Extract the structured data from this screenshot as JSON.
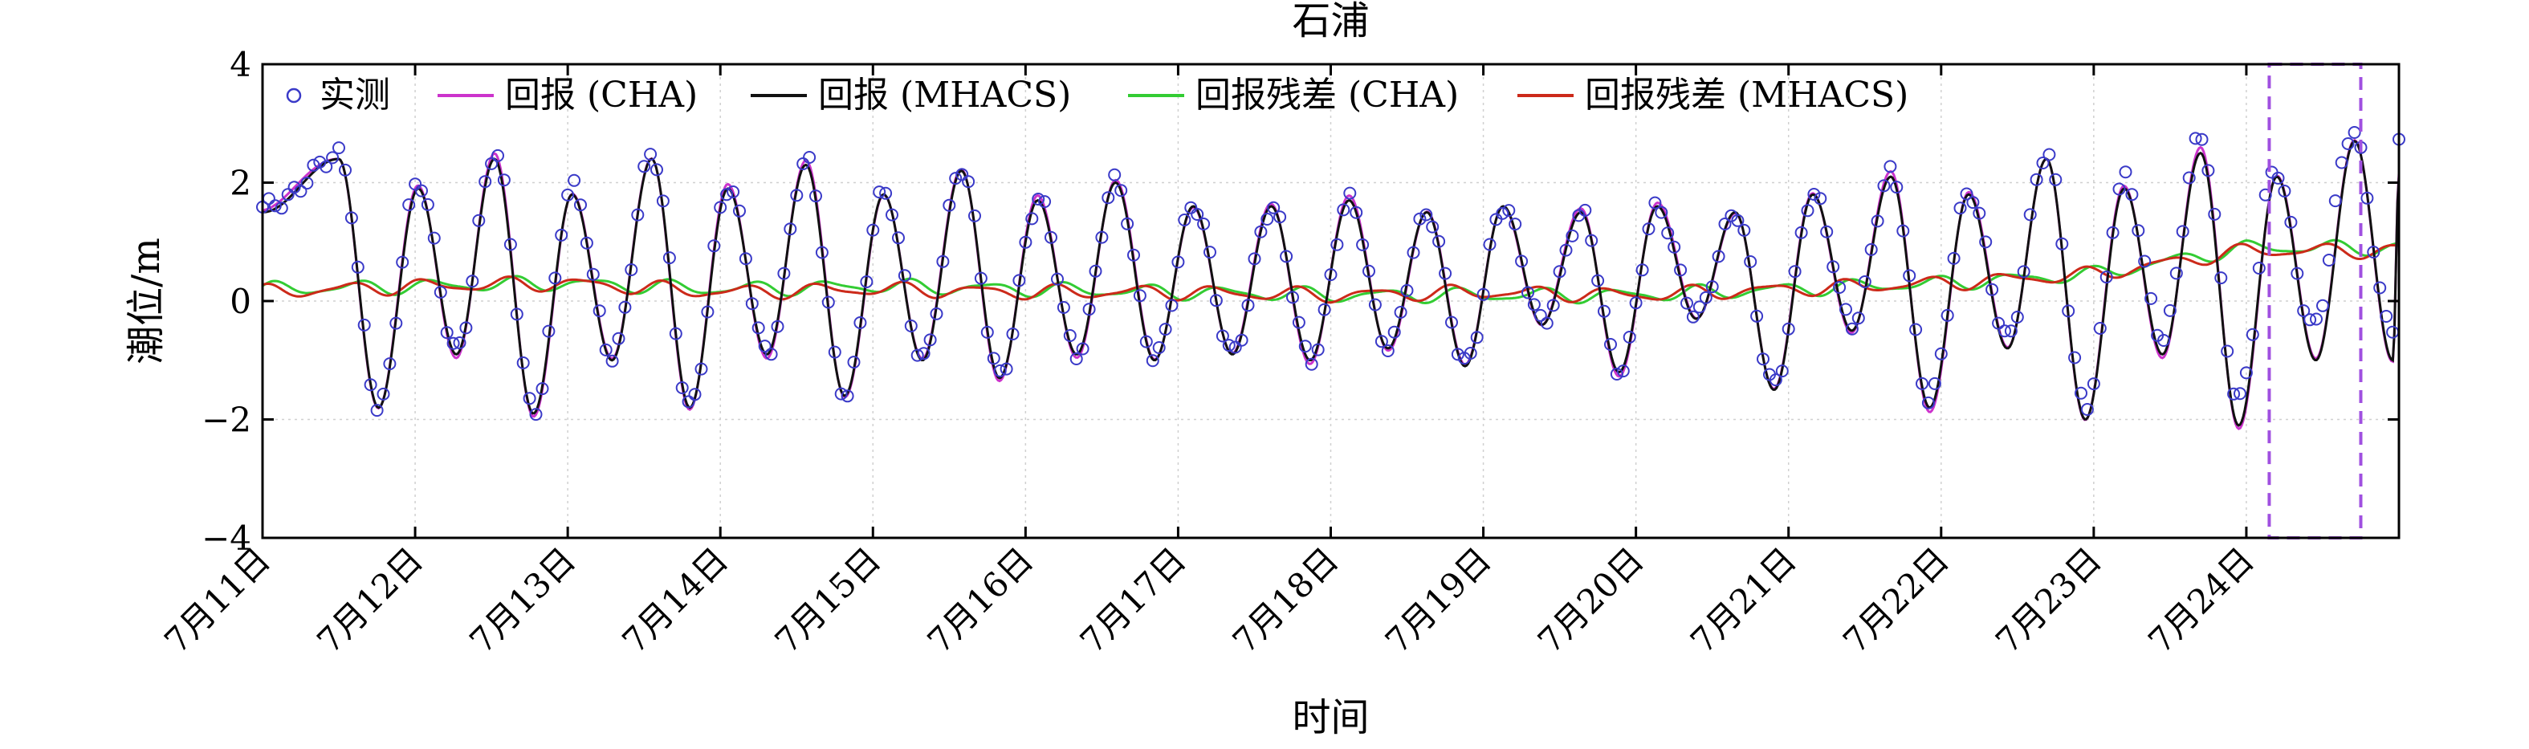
{
  "chart_data": {
    "type": "line",
    "title": "石浦",
    "xlabel": "时间",
    "ylabel": "潮位/m",
    "ylim": [
      -4,
      4
    ],
    "yticks": [
      -4,
      -2,
      0,
      2,
      4
    ],
    "xlim": [
      "7月11日",
      "7月25日 00:00"
    ],
    "xtick_labels": [
      "7月11日",
      "7月12日",
      "7月13日",
      "7月14日",
      "7月15日",
      "7月16日",
      "7月17日",
      "7月18日",
      "7月19日",
      "7月20日",
      "7月21日",
      "7月22日",
      "7月23日",
      "7月24日"
    ],
    "grid": true,
    "legend_position": "top",
    "legend": [
      "实测",
      "回报 (CHA)",
      "回报 (MHACS)",
      "回报残差 (CHA)",
      "回报残差 (MHACS)"
    ],
    "colors": {
      "observed": "#3a3ac8",
      "cha": "#cc33cc",
      "mhacs": "#111111",
      "residual_cha": "#33cc33",
      "residual_mhacs": "#cc2a1a",
      "highlight_box": "#a050e0"
    },
    "highlight_region": {
      "x_start_day": 13.15,
      "x_end_day": 13.75,
      "y_range": [
        -4,
        4
      ]
    },
    "series_summary": {
      "peak_times_day": [
        0.5,
        1.02,
        1.52,
        2.03,
        2.55,
        3.05,
        3.56,
        4.07,
        4.58,
        5.08,
        5.59,
        6.1,
        6.61,
        7.12,
        7.63,
        8.13,
        8.64,
        9.14,
        9.65,
        10.16,
        10.67,
        11.18,
        11.69,
        12.2,
        12.7,
        13.2,
        13.71
      ],
      "peak_values_m": [
        2.4,
        1.9,
        2.4,
        1.8,
        2.4,
        1.9,
        2.3,
        1.8,
        2.2,
        1.7,
        2.0,
        1.6,
        1.6,
        1.7,
        1.5,
        1.6,
        1.5,
        1.6,
        1.5,
        1.8,
        2.1,
        1.8,
        2.4,
        1.9,
        2.5,
        2.1,
        2.7
      ],
      "trough_values_m": [
        -1.8,
        -0.9,
        -1.9,
        -1.0,
        -1.8,
        -0.9,
        -1.6,
        -1.0,
        -1.3,
        -0.9,
        -1.0,
        -0.9,
        -1.0,
        -0.8,
        -1.1,
        -0.4,
        -1.2,
        -0.3,
        -1.5,
        -0.5,
        -1.8,
        -0.8,
        -2.0,
        -0.9,
        -2.1,
        -1.0,
        -1.0
      ],
      "residual_cha_level_m": [
        0.2,
        0.25,
        0.3,
        0.2,
        0.25,
        0.2,
        0.15,
        0.1,
        0.1,
        0.1,
        0.2,
        0.3,
        0.45,
        0.9
      ],
      "residual_mhacs_level_m": [
        0.15,
        0.25,
        0.3,
        0.15,
        0.2,
        0.15,
        0.15,
        0.1,
        0.15,
        0.1,
        0.2,
        0.3,
        0.45,
        0.85
      ]
    }
  }
}
